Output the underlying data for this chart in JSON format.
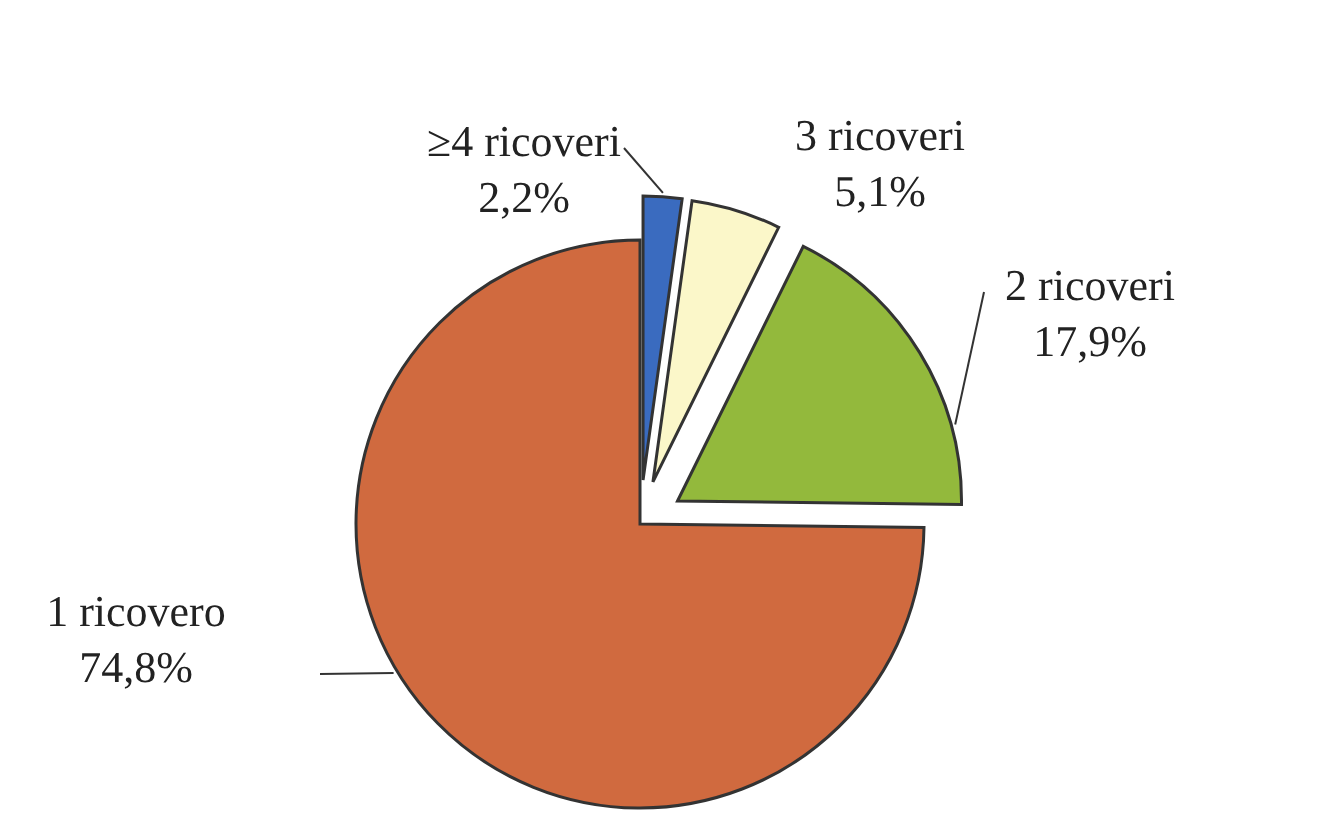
{
  "chart_data": {
    "type": "pie",
    "categories": [
      "≥4 ricoveri",
      "3 ricoveri",
      "2 ricoveri",
      "1 ricovero"
    ],
    "values": [
      2.2,
      5.1,
      17.9,
      74.8
    ],
    "colors": [
      "#3a6bbf",
      "#fbf7c9",
      "#93b93c",
      "#d06a3f"
    ],
    "value_labels": [
      "2,2%",
      "5,1%",
      "17,9%",
      "74,8%"
    ]
  }
}
